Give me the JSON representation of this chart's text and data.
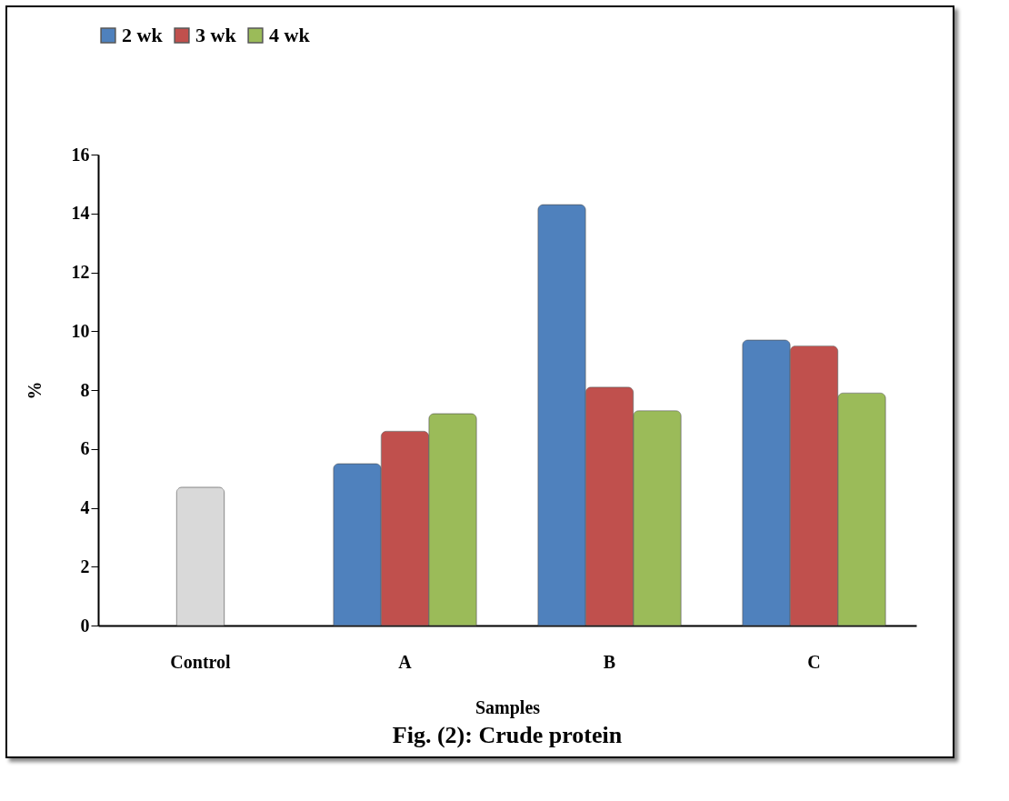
{
  "chart_data": {
    "type": "bar",
    "xlabel": "Samples",
    "ylabel": "%",
    "categories": [
      "Control",
      "A",
      "B",
      "C"
    ],
    "series": [
      {
        "name": "2 wk",
        "color": "#4f81bd",
        "values": [
          null,
          5.5,
          14.3,
          9.7
        ]
      },
      {
        "name": "3 wk",
        "color": "#c0504d",
        "values": [
          null,
          6.6,
          8.1,
          9.5
        ]
      },
      {
        "name": "4 wk",
        "color": "#9bbb59",
        "values": [
          null,
          7.2,
          7.3,
          7.9
        ]
      },
      {
        "color": "#d9d9d9",
        "values": [
          4.7,
          null,
          null,
          null
        ]
      }
    ],
    "ylim": [
      0,
      16
    ],
    "yticks": [
      0,
      2,
      4,
      6,
      8,
      10,
      12,
      14,
      16
    ],
    "grid": false,
    "legend": "top",
    "annotations": [
      "Fig. (2): Crude protein"
    ]
  }
}
